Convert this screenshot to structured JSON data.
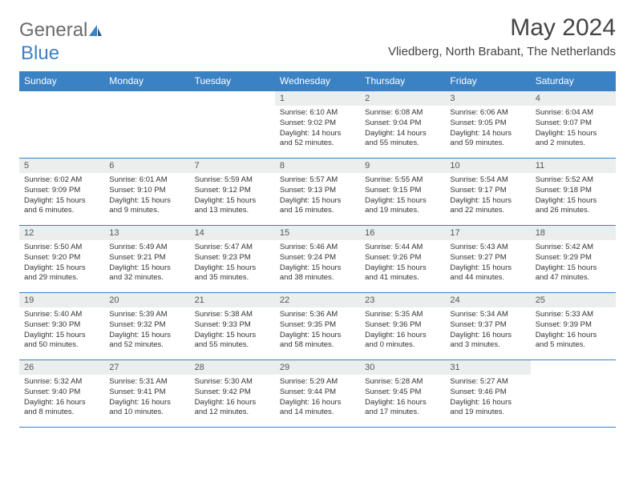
{
  "logo": {
    "text1": "General",
    "text2": "Blue"
  },
  "title": "May 2024",
  "location": "Vliedberg, North Brabant, The Netherlands",
  "colors": {
    "accent": "#3b82c4",
    "header_bg": "#3b82c4",
    "header_text": "#ffffff",
    "daynum_bg": "#eceded",
    "body_text": "#333333",
    "logo_gray": "#6b6b6b"
  },
  "day_headers": [
    "Sunday",
    "Monday",
    "Tuesday",
    "Wednesday",
    "Thursday",
    "Friday",
    "Saturday"
  ],
  "weeks": [
    [
      null,
      null,
      null,
      {
        "n": "1",
        "sr": "6:10 AM",
        "ss": "9:02 PM",
        "dl": "14 hours and 52 minutes."
      },
      {
        "n": "2",
        "sr": "6:08 AM",
        "ss": "9:04 PM",
        "dl": "14 hours and 55 minutes."
      },
      {
        "n": "3",
        "sr": "6:06 AM",
        "ss": "9:05 PM",
        "dl": "14 hours and 59 minutes."
      },
      {
        "n": "4",
        "sr": "6:04 AM",
        "ss": "9:07 PM",
        "dl": "15 hours and 2 minutes."
      }
    ],
    [
      {
        "n": "5",
        "sr": "6:02 AM",
        "ss": "9:09 PM",
        "dl": "15 hours and 6 minutes."
      },
      {
        "n": "6",
        "sr": "6:01 AM",
        "ss": "9:10 PM",
        "dl": "15 hours and 9 minutes."
      },
      {
        "n": "7",
        "sr": "5:59 AM",
        "ss": "9:12 PM",
        "dl": "15 hours and 13 minutes."
      },
      {
        "n": "8",
        "sr": "5:57 AM",
        "ss": "9:13 PM",
        "dl": "15 hours and 16 minutes."
      },
      {
        "n": "9",
        "sr": "5:55 AM",
        "ss": "9:15 PM",
        "dl": "15 hours and 19 minutes."
      },
      {
        "n": "10",
        "sr": "5:54 AM",
        "ss": "9:17 PM",
        "dl": "15 hours and 22 minutes."
      },
      {
        "n": "11",
        "sr": "5:52 AM",
        "ss": "9:18 PM",
        "dl": "15 hours and 26 minutes."
      }
    ],
    [
      {
        "n": "12",
        "sr": "5:50 AM",
        "ss": "9:20 PM",
        "dl": "15 hours and 29 minutes."
      },
      {
        "n": "13",
        "sr": "5:49 AM",
        "ss": "9:21 PM",
        "dl": "15 hours and 32 minutes."
      },
      {
        "n": "14",
        "sr": "5:47 AM",
        "ss": "9:23 PM",
        "dl": "15 hours and 35 minutes."
      },
      {
        "n": "15",
        "sr": "5:46 AM",
        "ss": "9:24 PM",
        "dl": "15 hours and 38 minutes."
      },
      {
        "n": "16",
        "sr": "5:44 AM",
        "ss": "9:26 PM",
        "dl": "15 hours and 41 minutes."
      },
      {
        "n": "17",
        "sr": "5:43 AM",
        "ss": "9:27 PM",
        "dl": "15 hours and 44 minutes."
      },
      {
        "n": "18",
        "sr": "5:42 AM",
        "ss": "9:29 PM",
        "dl": "15 hours and 47 minutes."
      }
    ],
    [
      {
        "n": "19",
        "sr": "5:40 AM",
        "ss": "9:30 PM",
        "dl": "15 hours and 50 minutes."
      },
      {
        "n": "20",
        "sr": "5:39 AM",
        "ss": "9:32 PM",
        "dl": "15 hours and 52 minutes."
      },
      {
        "n": "21",
        "sr": "5:38 AM",
        "ss": "9:33 PM",
        "dl": "15 hours and 55 minutes."
      },
      {
        "n": "22",
        "sr": "5:36 AM",
        "ss": "9:35 PM",
        "dl": "15 hours and 58 minutes."
      },
      {
        "n": "23",
        "sr": "5:35 AM",
        "ss": "9:36 PM",
        "dl": "16 hours and 0 minutes."
      },
      {
        "n": "24",
        "sr": "5:34 AM",
        "ss": "9:37 PM",
        "dl": "16 hours and 3 minutes."
      },
      {
        "n": "25",
        "sr": "5:33 AM",
        "ss": "9:39 PM",
        "dl": "16 hours and 5 minutes."
      }
    ],
    [
      {
        "n": "26",
        "sr": "5:32 AM",
        "ss": "9:40 PM",
        "dl": "16 hours and 8 minutes."
      },
      {
        "n": "27",
        "sr": "5:31 AM",
        "ss": "9:41 PM",
        "dl": "16 hours and 10 minutes."
      },
      {
        "n": "28",
        "sr": "5:30 AM",
        "ss": "9:42 PM",
        "dl": "16 hours and 12 minutes."
      },
      {
        "n": "29",
        "sr": "5:29 AM",
        "ss": "9:44 PM",
        "dl": "16 hours and 14 minutes."
      },
      {
        "n": "30",
        "sr": "5:28 AM",
        "ss": "9:45 PM",
        "dl": "16 hours and 17 minutes."
      },
      {
        "n": "31",
        "sr": "5:27 AM",
        "ss": "9:46 PM",
        "dl": "16 hours and 19 minutes."
      },
      null
    ]
  ],
  "labels": {
    "sunrise": "Sunrise: ",
    "sunset": "Sunset: ",
    "daylight": "Daylight: "
  }
}
